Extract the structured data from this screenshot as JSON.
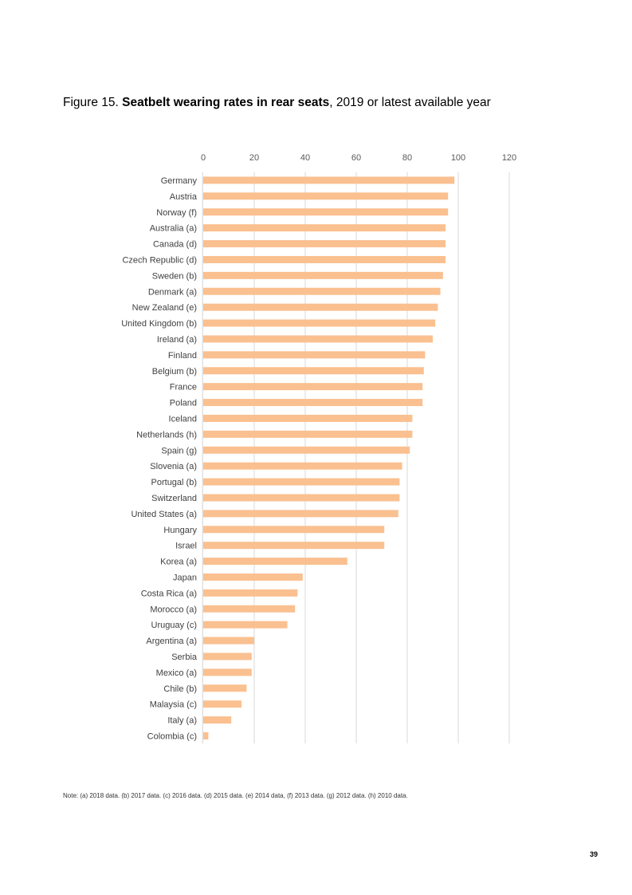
{
  "caption": {
    "prefix": "Figure 15. ",
    "bold": "Seatbelt wearing rates in rear seats",
    "suffix": ", 2019 or latest available year"
  },
  "chart_data": {
    "type": "bar",
    "orientation": "horizontal",
    "xlim": [
      0,
      120
    ],
    "x_ticks": [
      "0",
      "20",
      "40",
      "60",
      "80",
      "100",
      "120"
    ],
    "x_axis_position": "top",
    "grid": true,
    "legend": "none",
    "bar_color": "#fac090",
    "categories": [
      "Germany",
      "Austria",
      "Norway (f)",
      "Australia (a)",
      "Canada (d)",
      "Czech Republic (d)",
      "Sweden (b)",
      "Denmark (a)",
      "New Zealand (e)",
      "United Kingdom (b)",
      "Ireland (a)",
      "Finland",
      "Belgium (b)",
      "France",
      "Poland",
      "Iceland",
      "Netherlands (h)",
      "Spain (g)",
      "Slovenia (a)",
      "Portugal (b)",
      "Switzerland",
      "United States (a)",
      "Hungary",
      "Israel",
      "Korea (a)",
      "Japan",
      "Costa Rica (a)",
      "Morocco (a)",
      "Uruguay (c)",
      "Argentina (a)",
      "Serbia",
      "Mexico (a)",
      "Chile (b)",
      "Malaysia (c)",
      "Italy (a)",
      "Colombia (c)"
    ],
    "values": [
      98.5,
      96,
      96,
      95,
      95,
      95,
      94,
      93,
      92,
      91,
      90,
      87,
      86.5,
      86,
      86,
      82,
      82,
      81,
      78,
      77,
      77,
      76.5,
      71,
      71,
      56.5,
      39,
      37,
      36,
      33,
      20,
      19,
      19,
      17,
      15,
      11,
      2
    ]
  },
  "note": "Note: (a) 2018 data. (b) 2017 data. (c) 2016 data. (d) 2015 data. (e) 2014 data, (f) 2013 data. (g) 2012 data. (h) 2010 data.",
  "page_number": "39"
}
